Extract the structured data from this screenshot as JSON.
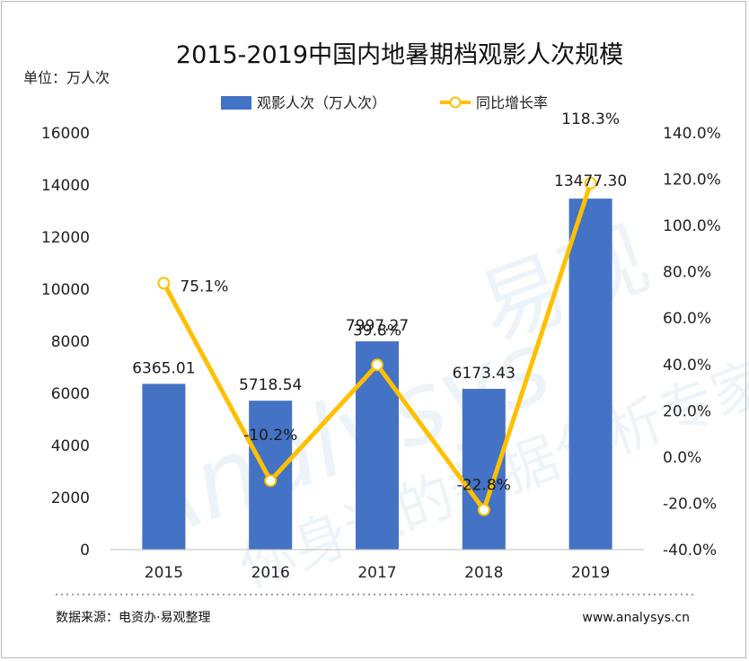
{
  "title": "2015-2019中国内地暑期档观影人次规模",
  "unit_label": "单位：万人次",
  "source": "数据来源：电资办·易观整理",
  "website": "www.analysys.cn",
  "watermark": {
    "brand_latin": "Analysys",
    "brand_cn": "易观",
    "slogan": "你身边的数据分析专家"
  },
  "colors": {
    "bar": "#4472c4",
    "line": "#ffc000",
    "marker_fill": "#ffffff"
  },
  "chart_data": {
    "type": "bar+line",
    "title": "2015-2019中国内地暑期档观影人次规模",
    "categories": [
      "2015",
      "2016",
      "2017",
      "2018",
      "2019"
    ],
    "series": [
      {
        "name": "观影人次（万人次）",
        "type": "bar",
        "axis": "left",
        "values": [
          6365.01,
          5718.54,
          7997.27,
          6173.43,
          13477.3
        ],
        "labels": [
          "6365.01",
          "5718.54",
          "7997.27",
          "6173.43",
          "13477.30"
        ]
      },
      {
        "name": "同比增长率",
        "type": "line",
        "axis": "right",
        "values": [
          75.1,
          -10.2,
          39.8,
          -22.8,
          118.3
        ],
        "labels": [
          "75.1%",
          "-10.2%",
          "39.8%",
          "-22.8%",
          "118.3%"
        ]
      }
    ],
    "left_axis": {
      "min": 0,
      "max": 16000,
      "ticks": [
        "0",
        "2000",
        "4000",
        "6000",
        "8000",
        "10000",
        "12000",
        "14000",
        "16000"
      ]
    },
    "right_axis": {
      "min": -40,
      "max": 140,
      "ticks": [
        "-40.0%",
        "-20.0%",
        "0.0%",
        "20.0%",
        "40.0%",
        "60.0%",
        "80.0%",
        "100.0%",
        "120.0%",
        "140.0%"
      ]
    },
    "grid": false,
    "legend_position": "top"
  }
}
